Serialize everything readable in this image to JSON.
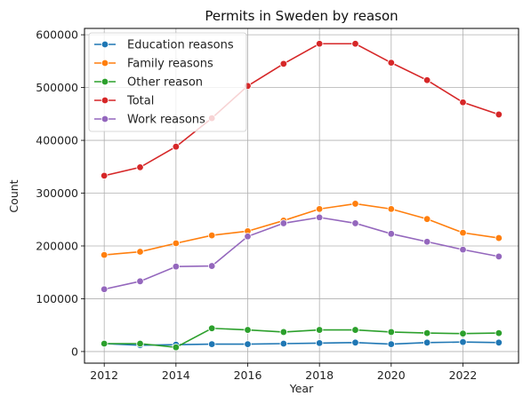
{
  "chart_data": {
    "type": "line",
    "title": "Permits in Sweden by reason",
    "xlabel": "Year",
    "ylabel": "Count",
    "x": [
      2012,
      2013,
      2014,
      2015,
      2016,
      2017,
      2018,
      2019,
      2020,
      2021,
      2022,
      2023
    ],
    "xlim": [
      2011.45,
      2023.55
    ],
    "ylim": [
      -22000,
      612000
    ],
    "xticks": [
      2012,
      2014,
      2016,
      2018,
      2020,
      2022
    ],
    "yticks": [
      0,
      100000,
      200000,
      300000,
      400000,
      500000,
      600000
    ],
    "grid": true,
    "legend_position": "top-left",
    "series": [
      {
        "name": "Education reasons",
        "color": "#1f77b4",
        "values": [
          15000,
          12000,
          13000,
          14000,
          14000,
          15000,
          16000,
          17000,
          14000,
          17000,
          18000,
          17000
        ]
      },
      {
        "name": "Family reasons",
        "color": "#ff7f0e",
        "values": [
          183000,
          189000,
          205000,
          220000,
          228000,
          248000,
          270000,
          280000,
          270000,
          251000,
          225000,
          215000
        ]
      },
      {
        "name": "Other reason",
        "color": "#2ca02c",
        "values": [
          15000,
          15000,
          8000,
          44000,
          41000,
          37000,
          41000,
          41000,
          37000,
          35000,
          34000,
          35000
        ]
      },
      {
        "name": "Total",
        "color": "#d62728",
        "values": [
          333000,
          349000,
          388000,
          442000,
          503000,
          545000,
          583000,
          583000,
          547000,
          514000,
          472000,
          449000
        ]
      },
      {
        "name": "Work reasons",
        "color": "#9467bd",
        "values": [
          118000,
          133000,
          161000,
          162000,
          218000,
          243000,
          254000,
          243000,
          223000,
          208000,
          193000,
          180000
        ]
      }
    ]
  }
}
